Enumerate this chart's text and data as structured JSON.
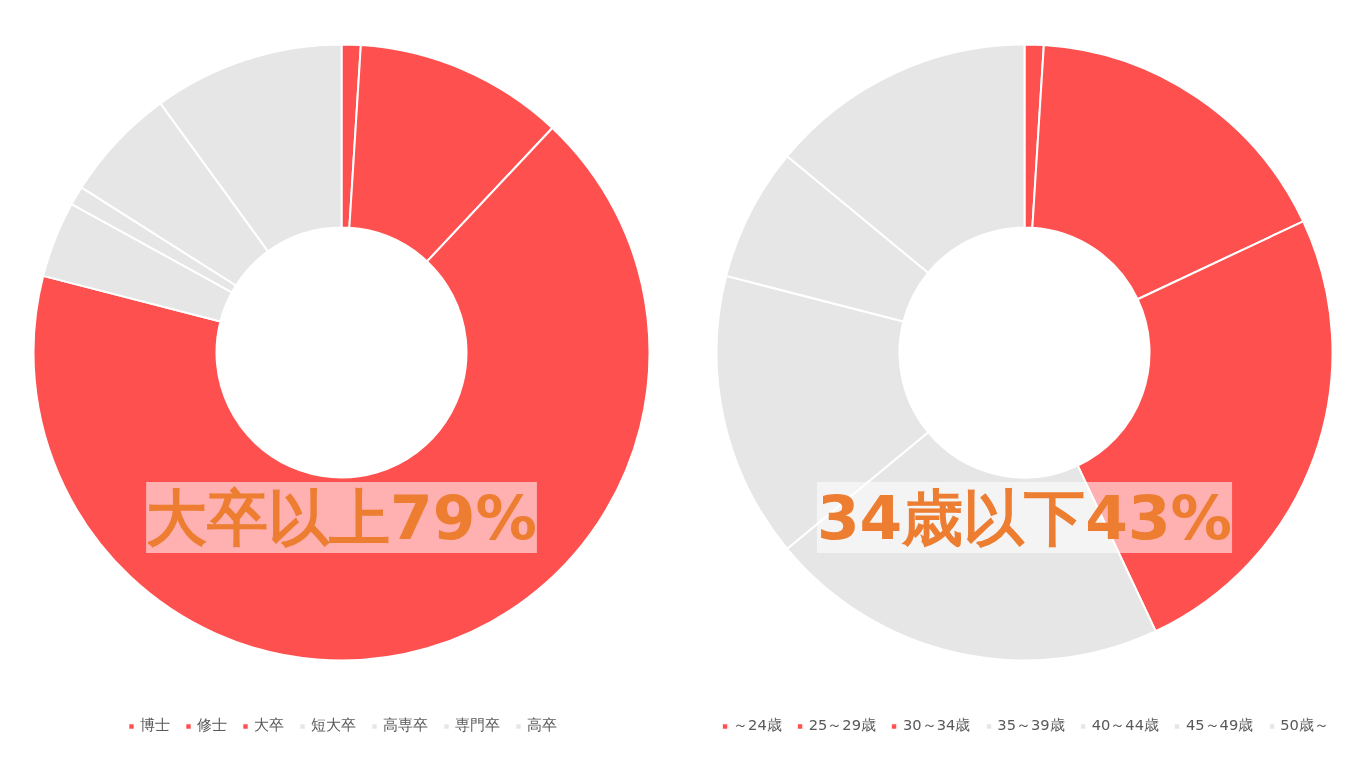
{
  "chart_data": [
    {
      "type": "donut",
      "categories": [
        "博士",
        "修士",
        "大卒",
        "短大卒",
        "高専卒",
        "専門卒",
        "高卒"
      ],
      "values": [
        1,
        11,
        67,
        4,
        1,
        6,
        10
      ],
      "colors": [
        "#ff5050",
        "#ff5050",
        "#ff5050",
        "#e6e6e6",
        "#e6e6e6",
        "#e6e6e6",
        "#e6e6e6"
      ],
      "annotations": [
        "大卒以上79%"
      ],
      "legend": "bottom"
    },
    {
      "type": "donut",
      "categories": [
        "～24歳",
        "25～29歳",
        "30～34歳",
        "35～39歳",
        "40～44歳",
        "45～49歳",
        "50歳～"
      ],
      "values": [
        1,
        17,
        25,
        21,
        15,
        7,
        14
      ],
      "colors": [
        "#ff5050",
        "#ff5050",
        "#ff5050",
        "#e6e6e6",
        "#e6e6e6",
        "#e6e6e6",
        "#e6e6e6"
      ],
      "annotations": [
        "34歳以下43%"
      ],
      "legend": "bottom"
    }
  ]
}
